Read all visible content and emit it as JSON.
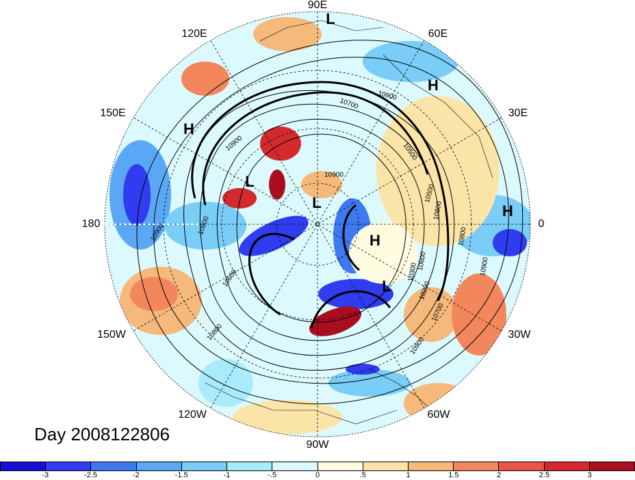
{
  "map": {
    "longitude_labels": [
      {
        "id": "lon-90e",
        "text": "90E"
      },
      {
        "id": "lon-60e",
        "text": "60E"
      },
      {
        "id": "lon-30e",
        "text": "30E"
      },
      {
        "id": "lon-0",
        "text": "0"
      },
      {
        "id": "lon-30w",
        "text": "30W"
      },
      {
        "id": "lon-60w",
        "text": "60W"
      },
      {
        "id": "lon-90w",
        "text": "90W"
      },
      {
        "id": "lon-120w",
        "text": "120W"
      },
      {
        "id": "lon-150w",
        "text": "150W"
      },
      {
        "id": "lon-180",
        "text": "180"
      },
      {
        "id": "lon-150e",
        "text": "150E"
      },
      {
        "id": "lon-120e",
        "text": "120E"
      }
    ],
    "pressure_centers": [
      "L",
      "H",
      "H",
      "H",
      "L",
      "L",
      "H",
      "H",
      "L"
    ],
    "contour_labels": [
      "10900",
      "10900",
      "10900",
      "10800",
      "10600",
      "10800",
      "10900",
      "10500",
      "10700",
      "10800",
      "10900",
      "10800",
      "10600",
      "10300",
      "10500",
      "10700",
      "10200",
      "10900"
    ],
    "title": "Day 2008122806"
  },
  "colorbar": {
    "colors": [
      "#1a0fd0",
      "#2f3cf0",
      "#3d7af2",
      "#5aa8f5",
      "#79cdf7",
      "#a8ecfb",
      "#dcfafd",
      "#fffbe0",
      "#fbe4a8",
      "#f5b97c",
      "#f2875d",
      "#ec5545",
      "#d32a2e",
      "#a90d20"
    ],
    "tick_labels": [
      "-3",
      "-2.5",
      "-2",
      "-1.5",
      "-1",
      "-.5",
      "0",
      ".5",
      "1",
      "1.5",
      "2",
      "2.5",
      "3"
    ]
  }
}
